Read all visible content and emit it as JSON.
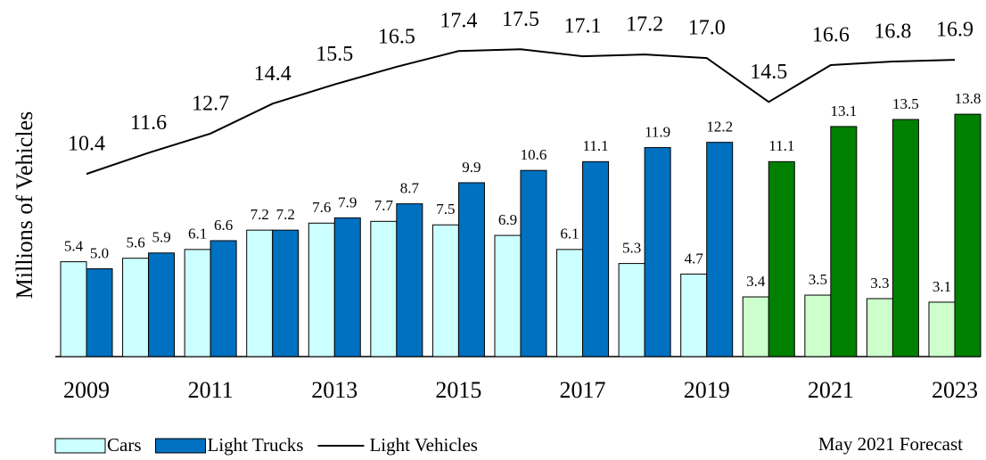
{
  "chart_data": {
    "type": "bar",
    "y_label": "Millions of Vehicles",
    "annotation": "May 2021 Forecast",
    "categories": [
      "2009",
      null,
      "2011",
      null,
      "2013",
      null,
      "2015",
      null,
      "2017",
      null,
      "2019",
      null,
      "2021",
      null,
      "2023"
    ],
    "ylim": [
      0,
      20
    ],
    "series": [
      {
        "name": "Cars",
        "kind": "bar",
        "color": "#ccffff",
        "colors": [
          "#ccffff",
          "#ccffff",
          "#ccffff",
          "#ccffff",
          "#ccffff",
          "#ccffff",
          "#ccffff",
          "#ccffff",
          "#ccffff",
          "#ccffff",
          "#ccffff",
          "#ccffcc",
          "#ccffcc",
          "#ccffcc",
          "#ccffcc"
        ],
        "values": [
          5.4,
          5.6,
          6.1,
          7.2,
          7.6,
          7.7,
          7.5,
          6.9,
          6.1,
          5.3,
          4.7,
          3.4,
          3.5,
          3.3,
          3.1
        ],
        "value_labels": [
          "5.4",
          "5.6",
          "6.1",
          "7.2",
          "7.6",
          "7.7",
          "7.5",
          "6.9",
          "6.1",
          "5.3",
          "4.7",
          "3.4",
          "3.5",
          "3.3",
          "3.1"
        ]
      },
      {
        "name": "Light Trucks",
        "kind": "bar",
        "color": "#0070c0",
        "colors": [
          "#0070c0",
          "#0070c0",
          "#0070c0",
          "#0070c0",
          "#0070c0",
          "#0070c0",
          "#0070c0",
          "#0070c0",
          "#0070c0",
          "#0070c0",
          "#0070c0",
          "#008000",
          "#008000",
          "#008000",
          "#008000"
        ],
        "values": [
          5.0,
          5.9,
          6.6,
          7.2,
          7.9,
          8.7,
          9.9,
          10.6,
          11.1,
          11.9,
          12.2,
          11.1,
          13.1,
          13.5,
          13.8
        ],
        "value_labels": [
          "5.0",
          "5.9",
          "6.6",
          "7.2",
          "7.9",
          "8.7",
          "9.9",
          "10.6",
          "11.1",
          "11.9",
          "12.2",
          "11.1",
          "13.1",
          "13.5",
          "13.8"
        ]
      },
      {
        "name": "Light Vehicles",
        "kind": "line",
        "color": "#000000",
        "values": [
          10.4,
          11.6,
          12.7,
          14.4,
          15.5,
          16.5,
          17.4,
          17.5,
          17.1,
          17.2,
          17.0,
          14.5,
          16.6,
          16.8,
          16.9
        ],
        "value_labels": [
          "10.4",
          "11.6",
          "12.7",
          "14.4",
          "15.5",
          "16.5",
          "17.4",
          "17.5",
          "17.1",
          "17.2",
          "17.0",
          "14.5",
          "16.6",
          "16.8",
          "16.9"
        ]
      }
    ]
  }
}
